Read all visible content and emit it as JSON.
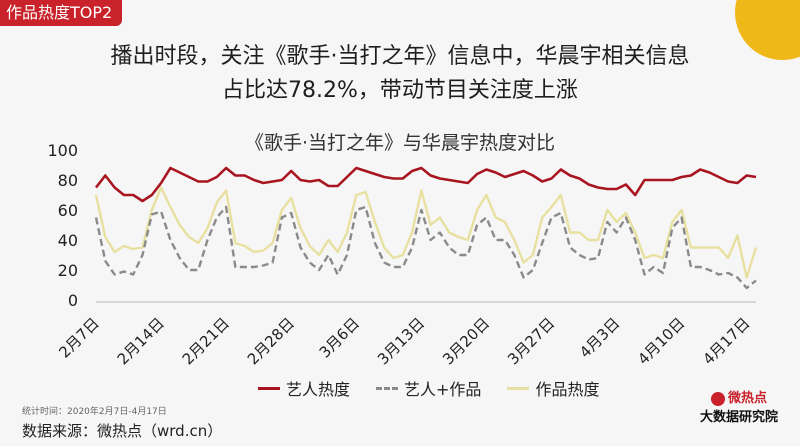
{
  "badge": "作品热度TOP2",
  "headline": {
    "line1": "播出时段，关注《歌手·当打之年》信息中，华晨宇相关信息",
    "line2": "占比达78.2%，带动节目关注度上涨"
  },
  "chart_data": {
    "type": "line",
    "title": "《歌手·当打之年》与华晨宇热度对比",
    "ylim": [
      0,
      100
    ],
    "yticks": [
      0,
      20,
      40,
      60,
      80,
      100
    ],
    "xticks": [
      "2月7日",
      "2月14日",
      "2月21日",
      "2月28日",
      "3月6日",
      "3月13日",
      "3月20日",
      "3月27日",
      "4月3日",
      "4月10日",
      "4月17日"
    ],
    "x_start_label": "2月7日",
    "n_points": 72,
    "legend_position": "bottom",
    "series": [
      {
        "name": "艺人热度",
        "color": "#a8141f",
        "style": "solid",
        "values": [
          75,
          83,
          75,
          70,
          70,
          66,
          70,
          78,
          88,
          85,
          82,
          79,
          79,
          82,
          88,
          83,
          83,
          80,
          78,
          79,
          80,
          86,
          80,
          79,
          80,
          76,
          76,
          82,
          88,
          86,
          84,
          82,
          81,
          81,
          86,
          88,
          83,
          81,
          80,
          79,
          78,
          84,
          87,
          85,
          82,
          84,
          86,
          83,
          79,
          81,
          87,
          83,
          81,
          77,
          75,
          74,
          74,
          77,
          70,
          80,
          80,
          80,
          80,
          82,
          83,
          87,
          85,
          82,
          79,
          78,
          83,
          82
        ]
      },
      {
        "name": "艺人+作品",
        "color": "#8a8a8a",
        "style": "dashed",
        "values": [
          55,
          26,
          17,
          19,
          17,
          30,
          57,
          59,
          40,
          28,
          20,
          20,
          40,
          55,
          62,
          22,
          22,
          22,
          23,
          25,
          55,
          58,
          35,
          25,
          20,
          30,
          17,
          30,
          60,
          62,
          38,
          25,
          22,
          22,
          35,
          60,
          40,
          45,
          35,
          30,
          30,
          50,
          55,
          40,
          40,
          30,
          15,
          20,
          38,
          55,
          58,
          35,
          30,
          27,
          28,
          52,
          45,
          55,
          40,
          17,
          22,
          18,
          48,
          55,
          22,
          22,
          20,
          17,
          18,
          15,
          8,
          13
        ]
      },
      {
        "name": "作品热度",
        "color": "#e8e0a0",
        "style": "solid",
        "values": [
          70,
          42,
          32,
          36,
          34,
          35,
          60,
          75,
          62,
          50,
          42,
          38,
          48,
          65,
          73,
          38,
          36,
          32,
          33,
          38,
          60,
          68,
          48,
          36,
          30,
          40,
          32,
          45,
          70,
          72,
          52,
          35,
          28,
          30,
          45,
          73,
          50,
          55,
          45,
          42,
          40,
          60,
          70,
          55,
          52,
          40,
          25,
          30,
          55,
          62,
          70,
          45,
          45,
          40,
          40,
          60,
          52,
          58,
          45,
          28,
          30,
          28,
          52,
          60,
          35,
          35,
          35,
          35,
          28,
          43,
          15,
          35
        ]
      }
    ]
  },
  "footer": {
    "stat_note": "统计时间：2020年2月7日-4月17日",
    "source": "数据来源：微热点（wrd.cn）",
    "brand_line1": "微热点",
    "brand_line2": "大数据研究院"
  }
}
